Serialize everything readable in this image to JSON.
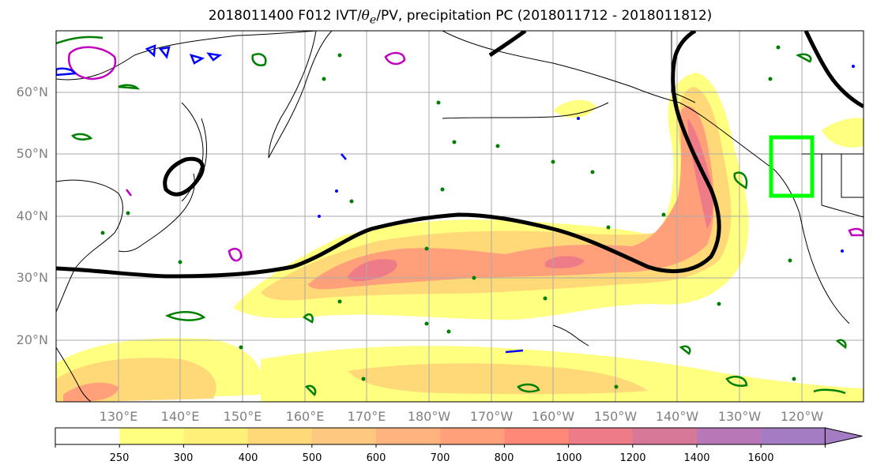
{
  "title": {
    "prefix": "2018011400 F012 IVT/",
    "theta": "θ",
    "theta_sub": "e",
    "suffix": "/PV, precipitation PC (2018011712 - 2018011812)"
  },
  "map": {
    "projection": "equirectangular",
    "lon_range": [
      120,
      250
    ],
    "lat_range": [
      10,
      70
    ],
    "gridlines": true,
    "lat_labels": [
      "20°N",
      "30°N",
      "40°N",
      "50°N",
      "60°N"
    ],
    "lon_labels": [
      "130°E",
      "140°E",
      "150°E",
      "160°E",
      "170°E",
      "180°W",
      "170°W",
      "160°W",
      "150°W",
      "140°W",
      "130°W",
      "120°W"
    ],
    "highlight_box_color": "#00ff00",
    "contour_colors": {
      "black": "#000000",
      "green": "#008000",
      "magenta": "#c000c0",
      "blue": "#0000ff"
    }
  },
  "colorbar": {
    "ticks": [
      "250",
      "300",
      "400",
      "500",
      "600",
      "700",
      "800",
      "1000",
      "1200",
      "1400",
      "1600"
    ],
    "colors": [
      "#ffffff",
      "#ffff80",
      "#fff07a",
      "#ffd878",
      "#ffc880",
      "#ffb480",
      "#ffa07a",
      "#ff8878",
      "#ee7c88",
      "#d87898",
      "#b878b8",
      "#a47cc4"
    ],
    "extend": "max"
  }
}
